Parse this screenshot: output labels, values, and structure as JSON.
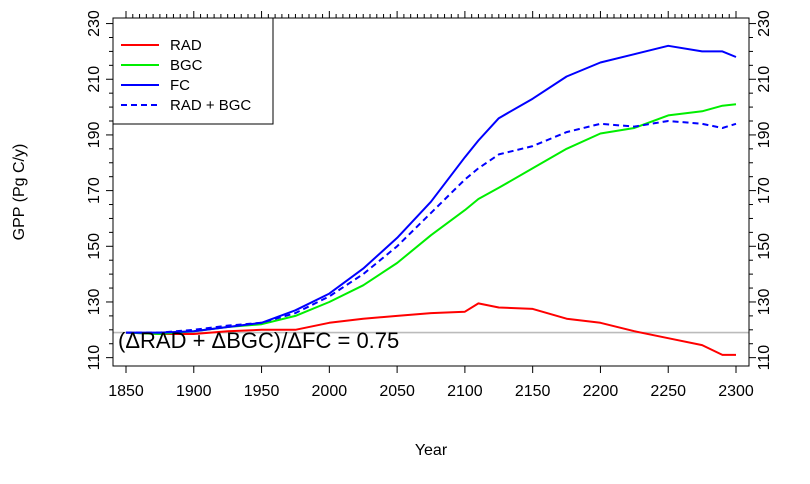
{
  "chart_data": {
    "type": "line",
    "xlabel": "Year",
    "ylabel": "GPP (Pg C/y)",
    "xlim": [
      1850,
      2300
    ],
    "ylim": [
      107,
      232
    ],
    "x_ticks": [
      1850,
      1900,
      1950,
      2000,
      2050,
      2100,
      2150,
      2200,
      2250,
      2300
    ],
    "y_ticks": [
      110,
      130,
      150,
      170,
      190,
      210,
      230
    ],
    "x_tick_labels": [
      "1850",
      "1900",
      "1950",
      "2000",
      "2050",
      "2100",
      "2150",
      "2200",
      "2250",
      "2300"
    ],
    "y_tick_labels": [
      "110",
      "130",
      "150",
      "170",
      "190",
      "210",
      "230"
    ],
    "reference_line": {
      "y": 119,
      "color": "#bbbbbb"
    },
    "annotation": "(ΔRAD + ΔBGC)/ΔFC = 0.75",
    "legend": "top-left",
    "x": [
      1850,
      1875,
      1900,
      1925,
      1950,
      1975,
      2000,
      2025,
      2050,
      2075,
      2100,
      2110,
      2125,
      2150,
      2175,
      2200,
      2225,
      2250,
      2275,
      2290,
      2300
    ],
    "series": [
      {
        "name": "RAD",
        "color": "#ff0000",
        "dash": "solid",
        "values": [
          119,
          118.5,
          118.5,
          119.5,
          120,
          120,
          122.5,
          124,
          125,
          126,
          126.5,
          129.5,
          128,
          127.5,
          124,
          122.5,
          119.5,
          117,
          114.5,
          111,
          111
        ]
      },
      {
        "name": "BGC",
        "color": "#00ee00",
        "dash": "solid",
        "values": [
          119,
          118.5,
          119.5,
          121,
          122,
          125,
          130,
          136,
          144,
          154,
          163,
          167,
          171,
          178,
          185,
          190.5,
          192.5,
          197,
          198.5,
          200.5,
          201
        ]
      },
      {
        "name": "FC",
        "color": "#0000ff",
        "dash": "solid",
        "values": [
          119,
          119,
          119.5,
          121,
          122.5,
          127,
          133,
          142,
          153,
          166,
          182,
          188,
          196,
          203,
          211,
          216,
          219,
          222,
          220,
          220,
          218
        ]
      },
      {
        "name": "RAD + BGC",
        "color": "#0000ff",
        "dash": "dashed",
        "values": [
          119,
          119,
          120,
          121.5,
          122.5,
          126,
          132,
          140,
          150,
          162,
          174,
          178,
          183,
          186,
          191,
          194,
          193,
          195,
          194,
          192.5,
          194
        ]
      }
    ]
  }
}
